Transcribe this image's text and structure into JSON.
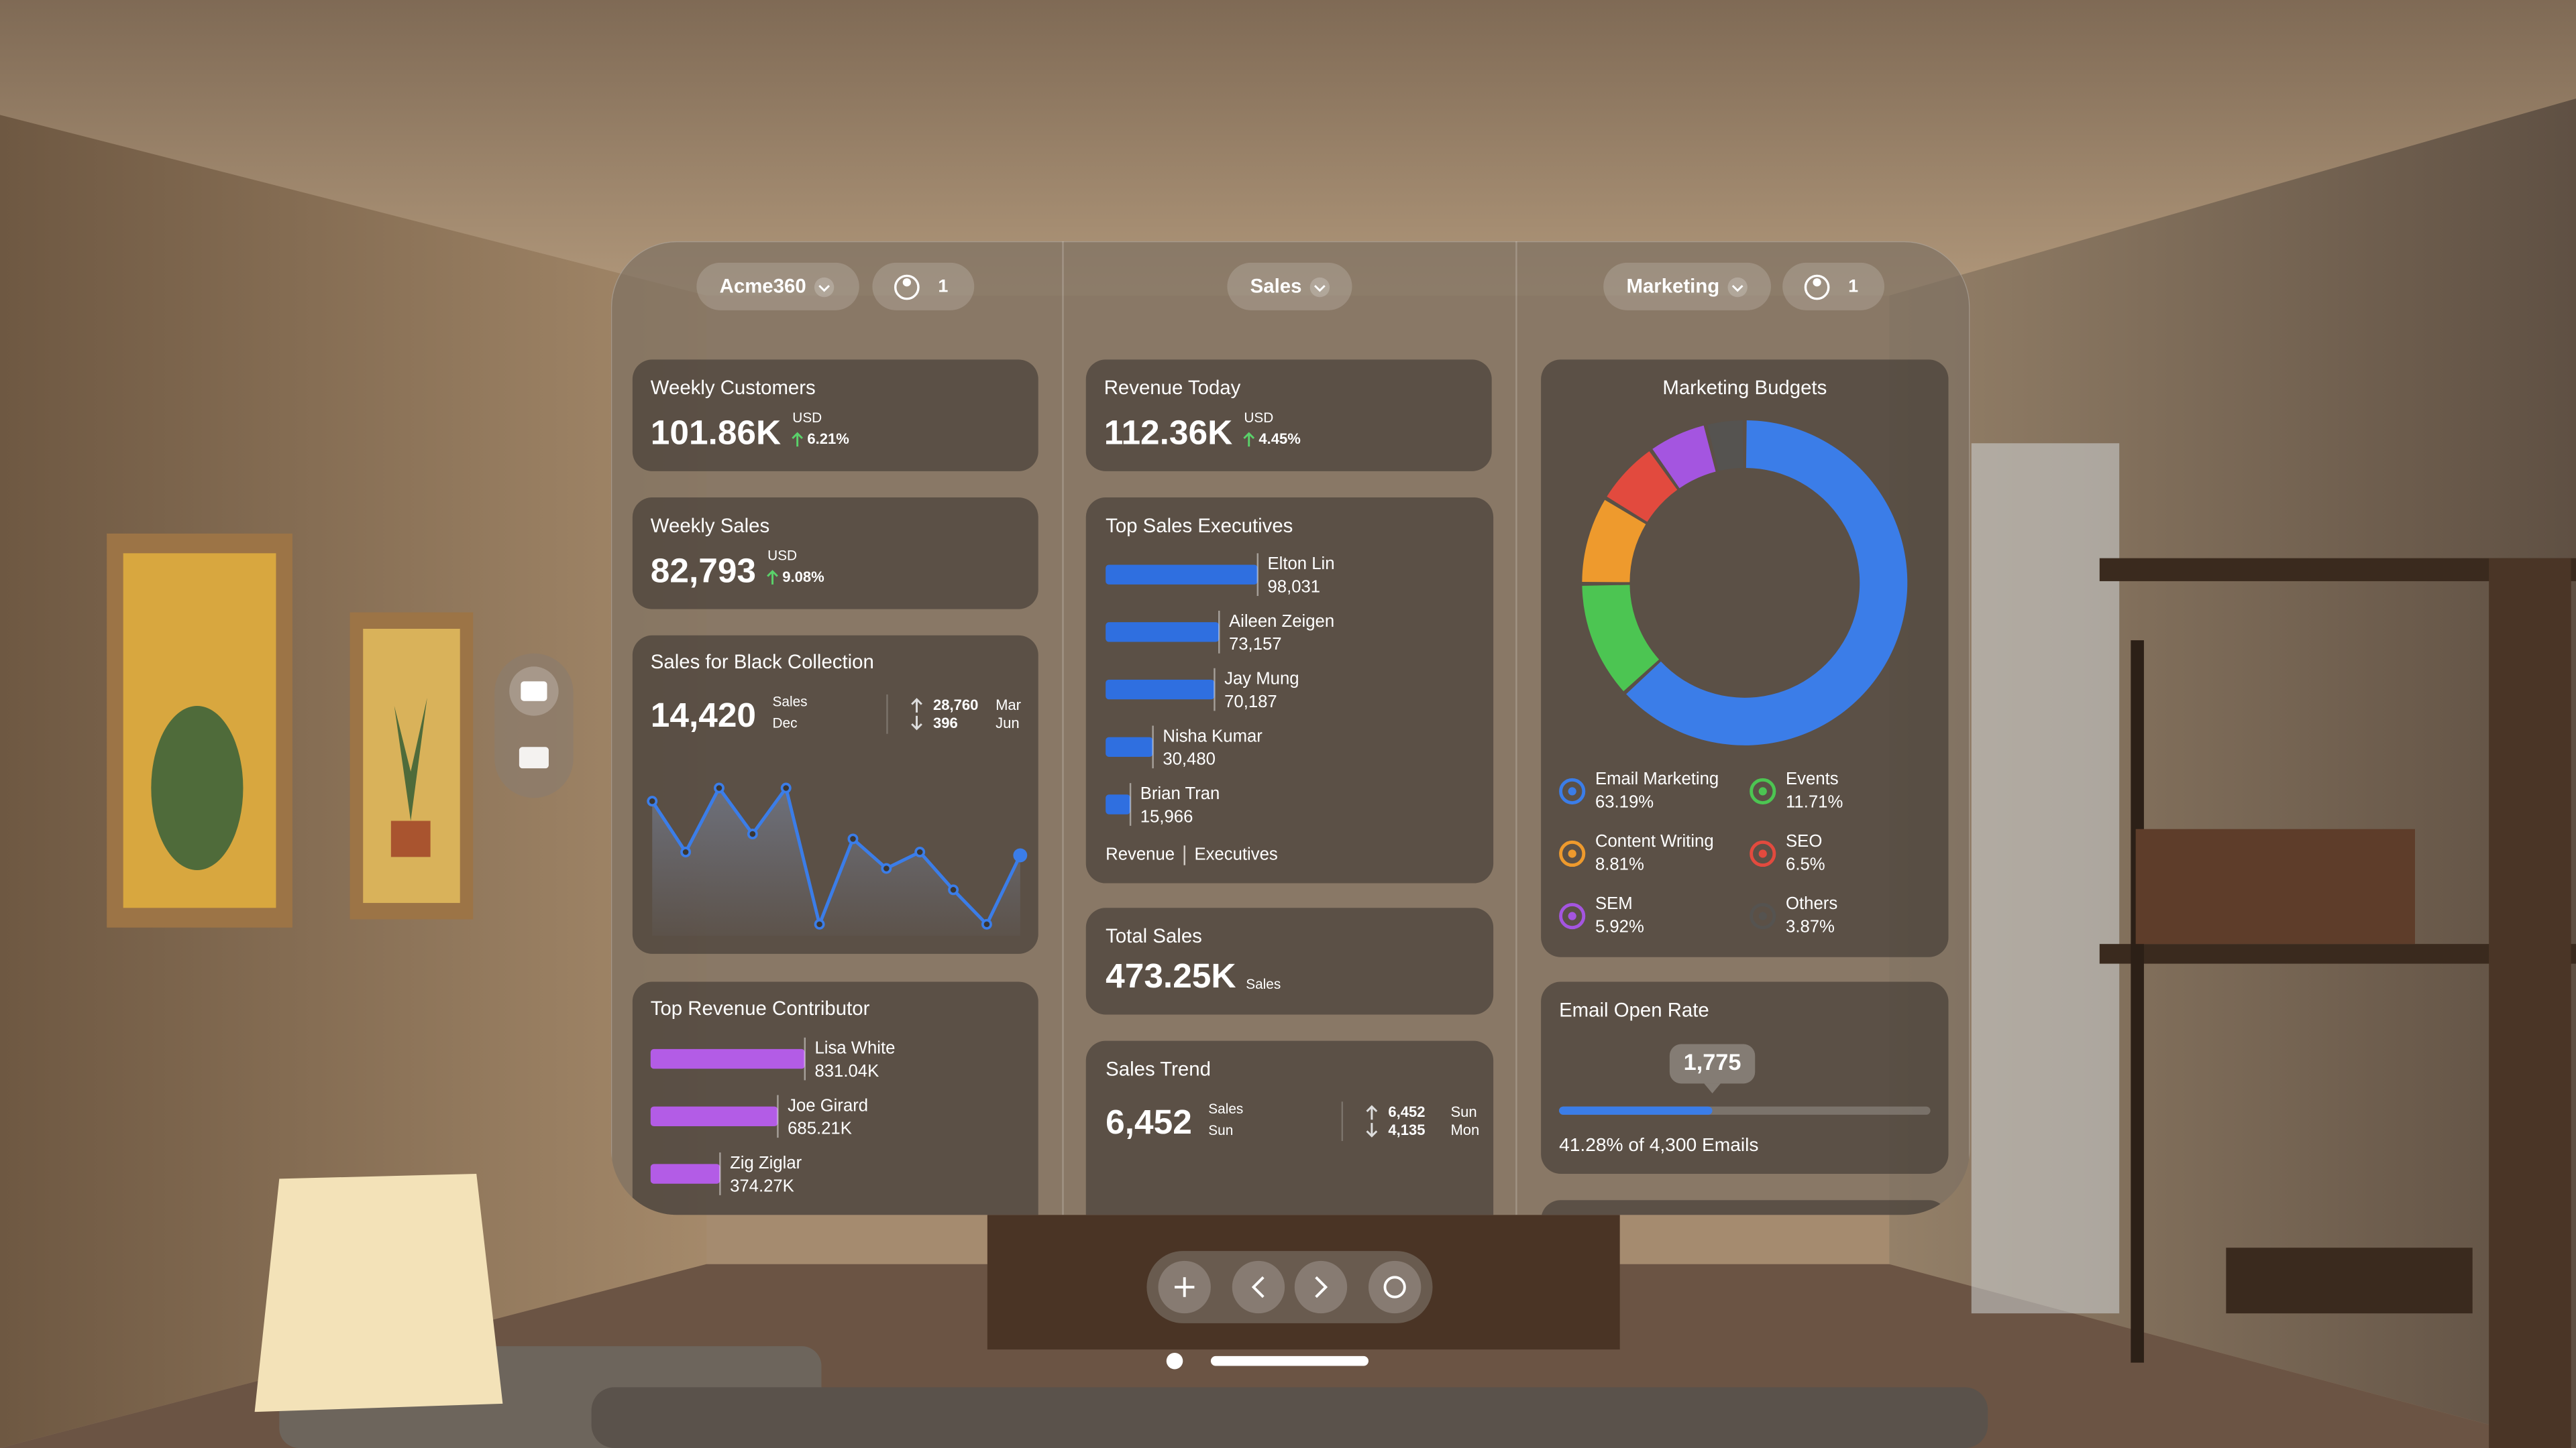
{
  "header": {
    "left_menu": "Acme360",
    "left_people": "1",
    "middle_menu": "Sales",
    "right_menu": "Marketing",
    "right_people": "1"
  },
  "weekly_customers": {
    "title": "Weekly Customers",
    "value": "101.86K",
    "unit": "USD",
    "change": "6.21%"
  },
  "weekly_sales": {
    "title": "Weekly Sales",
    "value": "82,793",
    "unit": "USD",
    "change": "9.08%"
  },
  "black_collection": {
    "title": "Sales for Black Collection",
    "value": "14,420",
    "value_caption": "Sales",
    "period": "Dec",
    "high": "28,760",
    "high_period": "Mar",
    "low": "396",
    "low_period": "Jun",
    "chart": {
      "type": "line",
      "color": "#3b7de8",
      "values": [
        82,
        51,
        90,
        62,
        90,
        7,
        59,
        41,
        51,
        28,
        7,
        49
      ],
      "ylim": [
        0,
        100
      ]
    }
  },
  "top_revenue": {
    "title": "Top Revenue Contributor",
    "chart": {
      "type": "bar",
      "color": "#b35ce6",
      "categories": [
        "Lisa White",
        "Joe Girard",
        "Zig Ziglar"
      ],
      "values": [
        831040,
        685210,
        374270
      ],
      "value_labels": [
        "831.04K",
        "685.21K",
        "374.27K"
      ],
      "xlim": [
        0,
        2000000
      ]
    }
  },
  "revenue_today": {
    "title": "Revenue Today",
    "value": "112.36K",
    "unit": "USD",
    "change": "4.45%"
  },
  "top_sales_executives": {
    "title": "Top Sales Executives",
    "chart": {
      "type": "bar",
      "color": "#2f6fe0",
      "categories": [
        "Elton Lin",
        "Aileen Zeigen",
        "Jay Mung",
        "Nisha Kumar",
        "Brian Tran"
      ],
      "values": [
        98031,
        73157,
        70187,
        30480,
        15966
      ],
      "value_labels": [
        "98,031",
        "73,157",
        "70,187",
        "30,480",
        "15,966"
      ],
      "xlim": [
        0,
        250000
      ]
    },
    "tabs": [
      "Revenue",
      "Executives"
    ]
  },
  "total_sales": {
    "title": "Total Sales",
    "value": "473.25K",
    "caption": "Sales"
  },
  "sales_trend": {
    "title": "Sales Trend",
    "value": "6,452",
    "value_caption": "Sales",
    "period": "Sun",
    "high": "6,452",
    "high_period": "Sun",
    "low": "4,135",
    "low_period": "Mon"
  },
  "marketing_budgets": {
    "title": "Marketing Budgets",
    "chart": {
      "type": "pie",
      "categories": [
        "Email Marketing",
        "Events",
        "Content Writing",
        "SEO",
        "SEM",
        "Others"
      ],
      "values": [
        63.19,
        11.71,
        8.81,
        6.5,
        5.92,
        3.87
      ],
      "value_labels": [
        "63.19%",
        "11.71%",
        "8.81%",
        "6.5%",
        "5.92%",
        "3.87%"
      ],
      "colors": [
        "#3b7de8",
        "#4cc552",
        "#ee9a2d",
        "#e24a3e",
        "#a455e0",
        "#555350"
      ]
    }
  },
  "email_open_rate": {
    "title": "Email Open Rate",
    "opened": {
      "value": 1775,
      "label": "1,775"
    },
    "total": 4300,
    "summary": "41.28% of 4,300 Emails"
  }
}
